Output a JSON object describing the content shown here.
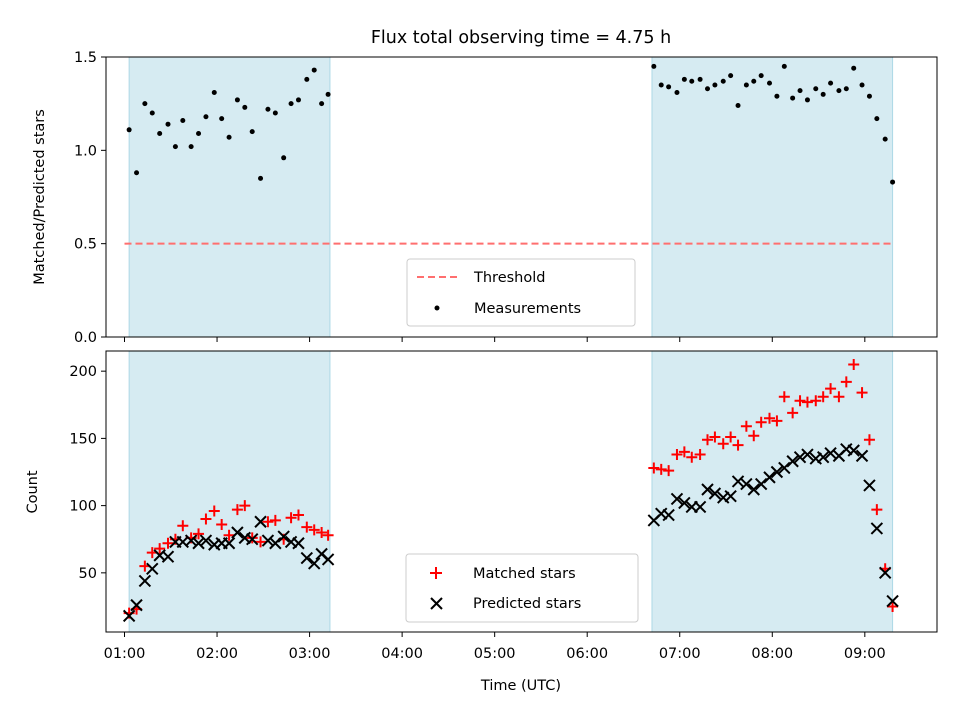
{
  "title": "Flux total observing time = 4.75 h",
  "chart_data": [
    {
      "type": "scatter",
      "title": "Flux total observing time = 4.75 h",
      "xlabel": "",
      "ylabel": "Matched/Predicted stars",
      "xlim": [
        0.8,
        9.78
      ],
      "ylim": [
        0,
        1.5
      ],
      "yticks": [
        0.0,
        0.5,
        1.0,
        1.5
      ],
      "ytick_labels": [
        "0.0",
        "0.5",
        "1.0",
        "1.5"
      ],
      "grid": false,
      "legend_position": "lower center",
      "shaded_spans": [
        [
          1.05,
          3.22
        ],
        [
          6.7,
          9.3
        ]
      ],
      "shade_color": "#add8e6",
      "threshold": {
        "name": "Threshold",
        "value": 0.5,
        "color": "#ff6f6f",
        "style": "dashed"
      },
      "series": [
        {
          "name": "Measurements",
          "color": "#000000",
          "marker": "dot",
          "x": [
            1.05,
            1.13,
            1.22,
            1.3,
            1.38,
            1.47,
            1.55,
            1.63,
            1.72,
            1.8,
            1.88,
            1.97,
            2.05,
            2.13,
            2.22,
            2.3,
            2.38,
            2.47,
            2.55,
            2.63,
            2.72,
            2.8,
            2.88,
            2.97,
            3.05,
            3.13,
            3.2,
            6.72,
            6.8,
            6.88,
            6.97,
            7.05,
            7.13,
            7.22,
            7.3,
            7.38,
            7.47,
            7.55,
            7.63,
            7.72,
            7.8,
            7.88,
            7.97,
            8.05,
            8.13,
            8.22,
            8.3,
            8.38,
            8.47,
            8.55,
            8.63,
            8.72,
            8.8,
            8.88,
            8.97,
            9.05,
            9.13,
            9.22,
            9.3
          ],
          "y": [
            1.11,
            0.88,
            1.25,
            1.2,
            1.09,
            1.14,
            1.02,
            1.16,
            1.02,
            1.09,
            1.18,
            1.31,
            1.17,
            1.07,
            1.27,
            1.23,
            1.1,
            0.85,
            1.22,
            1.2,
            0.96,
            1.25,
            1.27,
            1.38,
            1.43,
            1.25,
            1.3,
            1.45,
            1.35,
            1.34,
            1.31,
            1.38,
            1.37,
            1.38,
            1.33,
            1.35,
            1.37,
            1.4,
            1.24,
            1.35,
            1.37,
            1.4,
            1.36,
            1.29,
            1.45,
            1.28,
            1.32,
            1.27,
            1.33,
            1.3,
            1.36,
            1.32,
            1.33,
            1.44,
            1.35,
            1.29,
            1.17,
            1.06,
            0.83
          ]
        }
      ]
    },
    {
      "type": "scatter",
      "title": "",
      "xlabel": "Time (UTC)",
      "ylabel": "Count",
      "xlim": [
        0.8,
        9.78
      ],
      "ylim": [
        6,
        215
      ],
      "xticks": [
        1,
        2,
        3,
        4,
        5,
        6,
        7,
        8,
        9
      ],
      "xtick_labels": [
        "01:00",
        "02:00",
        "03:00",
        "04:00",
        "05:00",
        "06:00",
        "07:00",
        "08:00",
        "09:00"
      ],
      "yticks": [
        50,
        100,
        150,
        200
      ],
      "ytick_labels": [
        "50",
        "100",
        "150",
        "200"
      ],
      "grid": false,
      "legend_position": "lower center",
      "shaded_spans": [
        [
          1.05,
          3.22
        ],
        [
          6.7,
          9.3
        ]
      ],
      "shade_color": "#add8e6",
      "series": [
        {
          "name": "Matched stars",
          "color": "#ff0000",
          "marker": "plus",
          "x": [
            1.05,
            1.13,
            1.22,
            1.3,
            1.38,
            1.47,
            1.55,
            1.63,
            1.72,
            1.8,
            1.88,
            1.97,
            2.05,
            2.13,
            2.22,
            2.3,
            2.38,
            2.47,
            2.55,
            2.63,
            2.72,
            2.8,
            2.88,
            2.97,
            3.05,
            3.13,
            3.2,
            6.72,
            6.8,
            6.88,
            6.97,
            7.05,
            7.13,
            7.22,
            7.3,
            7.38,
            7.47,
            7.55,
            7.63,
            7.72,
            7.8,
            7.88,
            7.97,
            8.05,
            8.13,
            8.22,
            8.3,
            8.38,
            8.47,
            8.55,
            8.63,
            8.72,
            8.8,
            8.88,
            8.97,
            9.05,
            9.13,
            9.22,
            9.3
          ],
          "y": [
            20,
            23,
            55,
            65,
            68,
            72,
            75,
            85,
            76,
            79,
            90,
            96,
            86,
            78,
            97,
            100,
            76,
            73,
            88,
            89,
            75,
            91,
            93,
            84,
            82,
            80,
            78,
            128,
            127,
            126,
            138,
            140,
            136,
            138,
            149,
            151,
            146,
            151,
            145,
            159,
            152,
            162,
            165,
            163,
            181,
            169,
            178,
            177,
            178,
            181,
            187,
            181,
            192,
            205,
            184,
            149,
            97,
            53,
            25
          ]
        },
        {
          "name": "Predicted stars",
          "color": "#000000",
          "marker": "x",
          "x": [
            1.05,
            1.13,
            1.22,
            1.3,
            1.38,
            1.47,
            1.55,
            1.63,
            1.72,
            1.8,
            1.88,
            1.97,
            2.05,
            2.13,
            2.22,
            2.3,
            2.38,
            2.47,
            2.55,
            2.63,
            2.72,
            2.8,
            2.88,
            2.97,
            3.05,
            3.13,
            3.2,
            6.72,
            6.8,
            6.88,
            6.97,
            7.05,
            7.13,
            7.22,
            7.3,
            7.38,
            7.47,
            7.55,
            7.63,
            7.72,
            7.8,
            7.88,
            7.97,
            8.05,
            8.13,
            8.22,
            8.3,
            8.38,
            8.47,
            8.55,
            8.63,
            8.72,
            8.8,
            8.88,
            8.97,
            9.05,
            9.13,
            9.22,
            9.3
          ],
          "y": [
            18,
            26,
            44,
            53,
            63,
            62,
            73,
            73,
            74,
            72,
            74,
            71,
            72,
            72,
            80,
            76,
            75,
            88,
            74,
            72,
            77,
            73,
            72,
            61,
            57,
            64,
            60,
            89,
            94,
            93,
            105,
            102,
            99,
            99,
            112,
            109,
            106,
            107,
            118,
            116,
            112,
            116,
            121,
            125,
            128,
            133,
            136,
            138,
            135,
            136,
            139,
            137,
            142,
            141,
            137,
            115,
            83,
            50,
            29
          ]
        }
      ]
    }
  ]
}
